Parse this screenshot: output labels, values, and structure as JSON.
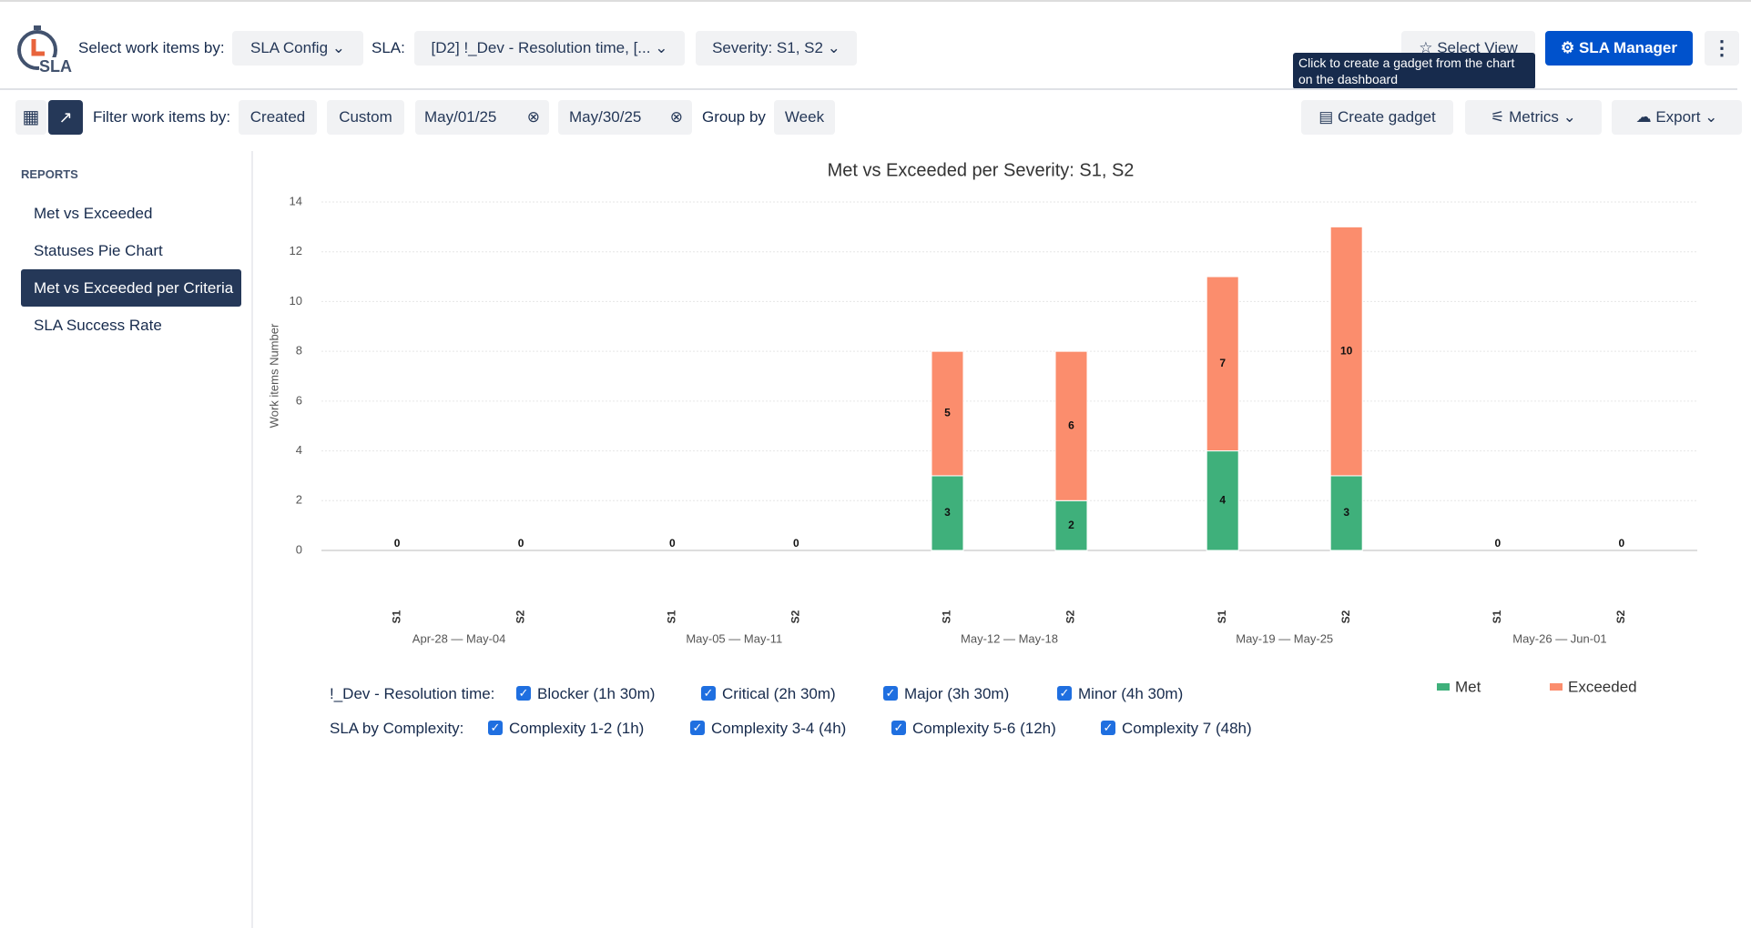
{
  "header": {
    "logo": "SLA",
    "select_label": "Select work items by:",
    "sla_config": "SLA Config",
    "sla_label": "SLA:",
    "sla_value": "[D2] !_Dev - Resolution time, [...",
    "severity": "Severity: S1, S2",
    "select_view": "Select View",
    "sla_manager": "SLA Manager",
    "tooltip": "Click to create a gadget from the chart on the dashboard"
  },
  "filters": {
    "label": "Filter work items by:",
    "created": "Created",
    "custom": "Custom",
    "from": "May/01/25",
    "to": "May/30/25",
    "group_by": "Group by",
    "group": "Week",
    "create_gadget": "Create gadget",
    "metrics": "Metrics",
    "export": "Export"
  },
  "sidebar": {
    "heading": "REPORTS",
    "items": [
      "Met vs Exceeded",
      "Statuses Pie Chart",
      "Met vs Exceeded per Criteria",
      "SLA Success Rate"
    ]
  },
  "chart_data": {
    "type": "bar",
    "stacked": true,
    "title": "Met vs Exceeded per Severity: S1, S2",
    "y_label": "Work items Number",
    "categories": [
      "S1",
      "S2",
      "S1",
      "S2",
      "S1",
      "S2",
      "S1",
      "S2",
      "S1",
      "S2"
    ],
    "groups": [
      "Apr-28 — May-04",
      "May-05 — May-11",
      "May-12 — May-18",
      "May-19 — May-25",
      "May-26 — Jun-01"
    ],
    "series": [
      {
        "name": "Met",
        "color": "#3fb07b",
        "values": [
          0,
          0,
          0,
          0,
          3,
          2,
          4,
          3,
          0,
          0
        ]
      },
      {
        "name": "Exceeded",
        "color": "#fb8d6d",
        "values": [
          0,
          0,
          0,
          0,
          5,
          6,
          7,
          10,
          0,
          0
        ]
      }
    ],
    "ylim": [
      0,
      14
    ],
    "yticks": [
      0,
      2,
      4,
      6,
      8,
      10,
      12,
      14
    ],
    "grid": true
  },
  "criteria": [
    {
      "label": "!_Dev - Resolution time:",
      "options": [
        "Blocker (1h 30m)",
        "Critical (2h 30m)",
        "Major (3h 30m)",
        "Minor (4h 30m)"
      ]
    },
    {
      "label": "SLA by Complexity:",
      "options": [
        "Complexity 1-2 (1h)",
        "Complexity 3-4 (4h)",
        "Complexity 5-6 (12h)",
        "Complexity 7 (48h)"
      ]
    }
  ]
}
